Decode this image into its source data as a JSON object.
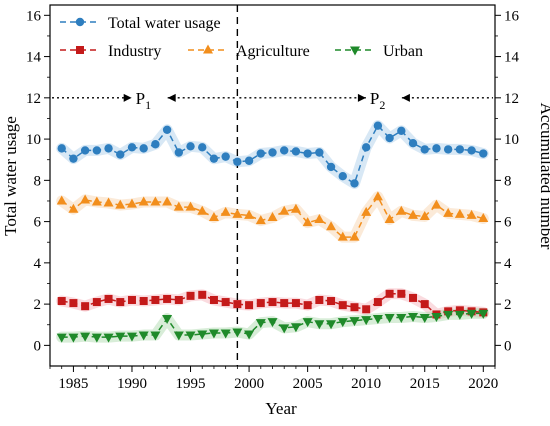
{
  "chart_data": {
    "type": "line",
    "xlabel": "Year",
    "ylabel": "Total water usage",
    "y2label": "Accumulated number",
    "xlim": [
      1983,
      2021
    ],
    "ylim": [
      -1,
      16.5
    ],
    "xticks": [
      1985,
      1990,
      1995,
      2000,
      2005,
      2010,
      2015,
      2020
    ],
    "yticks": [
      0,
      2,
      4,
      6,
      8,
      10,
      12,
      14,
      16
    ],
    "x": [
      1984,
      1985,
      1986,
      1987,
      1988,
      1989,
      1990,
      1991,
      1992,
      1993,
      1994,
      1995,
      1996,
      1997,
      1998,
      1999,
      2000,
      2001,
      2002,
      2003,
      2004,
      2005,
      2006,
      2007,
      2008,
      2009,
      2010,
      2011,
      2012,
      2013,
      2014,
      2015,
      2016,
      2017,
      2018,
      2019,
      2020
    ],
    "series": [
      {
        "name": "Total water usage",
        "color": "#2e7ebf",
        "marker": "circle",
        "values": [
          9.55,
          9.05,
          9.45,
          9.45,
          9.55,
          9.25,
          9.6,
          9.55,
          9.75,
          10.45,
          9.35,
          9.65,
          9.6,
          9.05,
          9.15,
          8.9,
          8.95,
          9.3,
          9.35,
          9.45,
          9.4,
          9.3,
          9.35,
          8.65,
          8.2,
          7.85,
          9.6,
          10.65,
          10.05,
          10.4,
          9.8,
          9.5,
          9.55,
          9.5,
          9.5,
          9.45,
          9.3
        ]
      },
      {
        "name": "Industry",
        "color": "#c41a1a",
        "marker": "square",
        "values": [
          2.15,
          2.05,
          1.9,
          2.1,
          2.25,
          2.1,
          2.2,
          2.15,
          2.2,
          2.25,
          2.2,
          2.4,
          2.45,
          2.2,
          2.1,
          2.0,
          1.95,
          2.05,
          2.1,
          2.05,
          2.05,
          1.95,
          2.2,
          2.15,
          1.95,
          1.85,
          1.75,
          2.1,
          2.5,
          2.5,
          2.3,
          2.0,
          1.5,
          1.65,
          1.7,
          1.65,
          1.6
        ]
      },
      {
        "name": "Agriculture",
        "color": "#f28e1c",
        "marker": "triangle-up",
        "values": [
          7.0,
          6.6,
          7.05,
          6.95,
          6.9,
          6.8,
          6.85,
          6.95,
          6.95,
          6.95,
          6.7,
          6.7,
          6.5,
          6.2,
          6.45,
          6.35,
          6.3,
          6.05,
          6.2,
          6.5,
          6.6,
          5.95,
          6.1,
          5.75,
          5.25,
          5.25,
          6.45,
          7.2,
          6.1,
          6.5,
          6.3,
          6.25,
          6.8,
          6.4,
          6.35,
          6.3,
          6.15
        ]
      },
      {
        "name": "Urban",
        "color": "#1f8a2a",
        "marker": "triangle-down",
        "values": [
          0.4,
          0.4,
          0.45,
          0.4,
          0.4,
          0.45,
          0.45,
          0.5,
          0.5,
          1.3,
          0.5,
          0.5,
          0.55,
          0.6,
          0.6,
          0.65,
          0.55,
          1.1,
          1.15,
          0.85,
          0.9,
          1.15,
          1.05,
          1.05,
          1.15,
          1.2,
          1.25,
          1.3,
          1.35,
          1.35,
          1.4,
          1.35,
          1.4,
          1.5,
          1.5,
          1.55,
          1.55
        ]
      }
    ],
    "vline_x": 1999,
    "change_line_y": 12,
    "annotations": [
      {
        "main": "P",
        "sub": "1",
        "x": 1991
      },
      {
        "main": "P",
        "sub": "2",
        "x": 2011
      }
    ],
    "legend_rows": [
      [
        "Total water usage"
      ],
      [
        "Industry",
        "Agriculture",
        "Urban"
      ]
    ],
    "grid": false,
    "legend_placement": "top"
  }
}
